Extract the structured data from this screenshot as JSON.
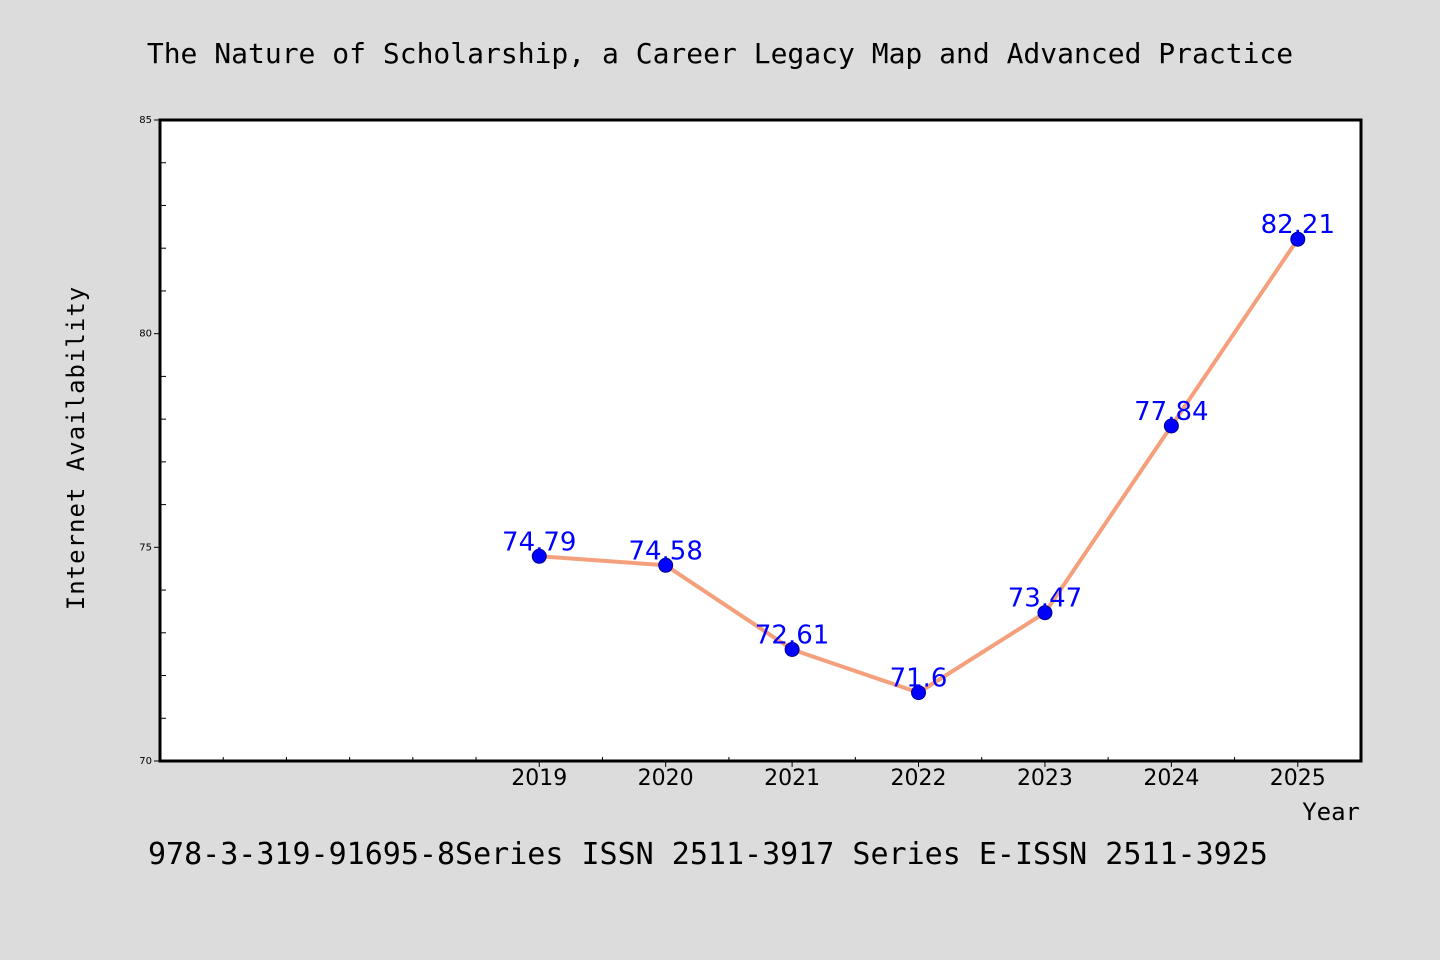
{
  "page": {
    "background_color": "#dcdcdc",
    "footer": "978-3-319-91695-8Series ISSN 2511-3917 Series E-ISSN 2511-3925"
  },
  "chart_data": {
    "type": "line",
    "title": "The Nature of Scholarship, a Career Legacy Map and Advanced Practice",
    "xlabel": "Year",
    "ylabel": "Internet Availability",
    "x": [
      2019,
      2020,
      2021,
      2022,
      2023,
      2024,
      2025
    ],
    "x_tick_labels": [
      "2019",
      "2020",
      "2021",
      "2022",
      "2023",
      "2024",
      "2025"
    ],
    "values": [
      74.79,
      74.58,
      72.61,
      71.6,
      73.47,
      77.84,
      82.21
    ],
    "data_labels": [
      "74.79",
      "74.58",
      "72.61",
      "71.6",
      "73.47",
      "77.84",
      "82.21"
    ],
    "xlim": [
      2016,
      2025.5
    ],
    "ylim": [
      70,
      85
    ],
    "y_ticks": [
      70,
      75,
      80,
      85
    ],
    "y_tick_labels": [
      "70",
      "75",
      "80",
      "85"
    ],
    "grid": false,
    "legend": "none",
    "colors": {
      "line": "#f4a07c",
      "marker": "#0000ff",
      "data_label": "#0000ff",
      "plot_background": "#ffffff",
      "axes": "#000000"
    }
  }
}
